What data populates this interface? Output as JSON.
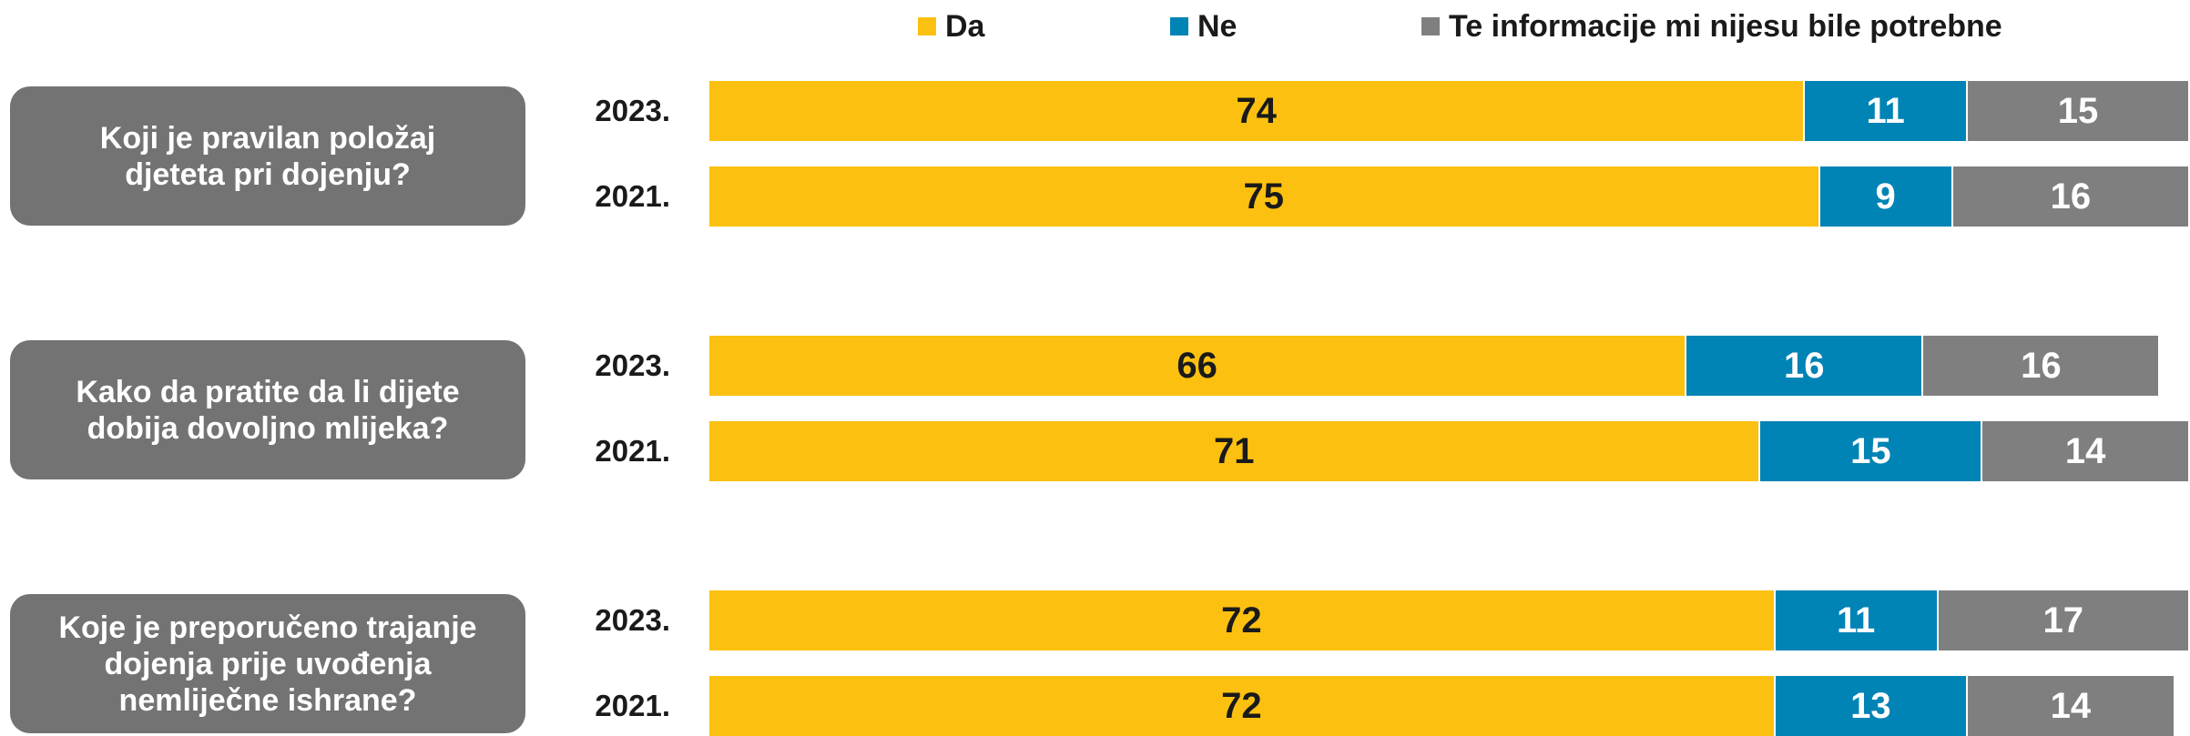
{
  "chart_data": {
    "type": "bar",
    "orientation": "horizontal",
    "stacked": true,
    "group_labels": [
      "Koji je pravilan položaj djeteta pri dojenju?",
      "Kako da pratite da li dijete dobija dovoljno mlijeka?",
      "Koje je preporučeno trajanje dojenja prije uvođenja nemliječne ishrane?"
    ],
    "categories": [
      "2023.",
      "2021.",
      "2023.",
      "2021.",
      "2023.",
      "2021."
    ],
    "series": [
      {
        "name": "Da",
        "color": "#fcc010",
        "values": [
          74,
          75,
          66,
          71,
          72,
          72
        ]
      },
      {
        "name": "Ne",
        "color": "#0083b5",
        "values": [
          11,
          9,
          16,
          15,
          11,
          13
        ]
      },
      {
        "name": "Te informacije mi nijesu bile potrebne",
        "color": "#7f7f7f",
        "values": [
          15,
          16,
          16,
          14,
          17,
          14
        ]
      }
    ],
    "xlim": [
      0,
      100
    ],
    "legend": "top"
  }
}
